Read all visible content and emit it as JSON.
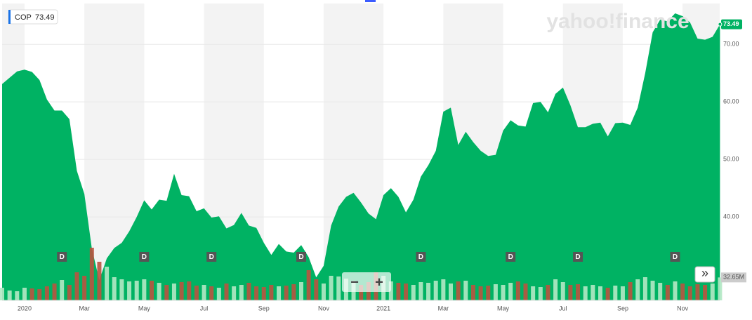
{
  "chart_data": {
    "type": "area",
    "ticker": "COP",
    "last_price": {
      "value": 73.49,
      "label": "73.49"
    },
    "watermark": "yahoo!finance",
    "color": "#00b263",
    "grid": true,
    "ylim": [
      25.5,
      77.1
    ],
    "yticks": [
      {
        "value": 40,
        "label": "40.00"
      },
      {
        "value": 50,
        "label": "50.00"
      },
      {
        "value": 60,
        "label": "60.00"
      },
      {
        "value": 70,
        "label": "70.00"
      }
    ],
    "categories": [
      null,
      null,
      null,
      "2020",
      null,
      null,
      null,
      null,
      null,
      null,
      null,
      "Mar",
      null,
      null,
      null,
      null,
      null,
      null,
      null,
      "May",
      null,
      null,
      null,
      null,
      null,
      null,
      null,
      "Jul",
      null,
      null,
      null,
      null,
      null,
      null,
      null,
      "Sep",
      null,
      null,
      null,
      null,
      null,
      null,
      null,
      "Nov",
      null,
      null,
      null,
      null,
      null,
      null,
      null,
      "2021",
      null,
      null,
      null,
      null,
      null,
      null,
      null,
      "Mar",
      null,
      null,
      null,
      null,
      null,
      null,
      null,
      "May",
      null,
      null,
      null,
      null,
      null,
      null,
      null,
      "Jul",
      null,
      null,
      null,
      null,
      null,
      null,
      null,
      "Sep",
      null,
      null,
      null,
      null,
      null,
      null,
      null,
      "Nov",
      null,
      null,
      null,
      null,
      null
    ],
    "values": [
      63.1,
      64.2,
      65.3,
      65.6,
      65.2,
      63.8,
      60.4,
      58.5,
      58.5,
      57,
      48,
      44,
      34.5,
      29,
      32.8,
      34.6,
      35.5,
      37.5,
      40,
      42.9,
      41.3,
      43,
      42.8,
      47.5,
      43.8,
      43.6,
      41,
      41.5,
      39.9,
      40.1,
      38,
      38.6,
      40.7,
      38.5,
      38.1,
      35.5,
      33.4,
      35.3,
      34,
      33.8,
      35.1,
      33,
      29.5,
      31.5,
      38.5,
      41.8,
      43.5,
      44.2,
      42.5,
      40.6,
      39.6,
      43.8,
      45,
      43.5,
      40.8,
      43,
      47,
      49,
      51.5,
      58.3,
      59,
      52.5,
      54.8,
      53,
      51.5,
      50.6,
      50.8,
      55,
      56.8,
      55.9,
      55.7,
      59.8,
      60,
      58.2,
      61.4,
      62.5,
      59.4,
      55.6,
      55.6,
      56.2,
      56.4,
      54,
      56.3,
      56.4,
      56,
      59,
      65,
      72.1,
      74.3,
      74,
      75.4,
      74.9,
      73.8,
      71,
      70.8,
      71.3,
      73.49
    ],
    "volume": {
      "vlim": [
        0,
        80
      ],
      "up_color": "#b3e8c4",
      "down_color": "#b9533f",
      "last_label": "32.65M",
      "values": [
        18,
        14,
        13,
        18,
        17,
        16,
        20,
        24,
        29,
        22,
        40,
        35,
        75,
        55,
        48,
        33,
        30,
        27,
        28,
        30,
        28,
        25,
        22,
        24,
        26,
        27,
        21,
        22,
        20,
        18,
        24,
        20,
        22,
        25,
        20,
        19,
        22,
        20,
        21,
        23,
        26,
        43,
        30,
        24,
        35,
        34,
        31,
        28,
        22,
        26,
        40,
        35,
        27,
        25,
        24,
        22,
        26,
        25,
        28,
        30,
        24,
        27,
        28,
        22,
        20,
        21,
        23,
        22,
        25,
        27,
        24,
        20,
        19,
        22,
        30,
        26,
        22,
        23,
        20,
        22,
        20,
        18,
        21,
        20,
        26,
        30,
        33,
        28,
        25,
        22,
        27,
        24,
        20,
        23,
        22,
        24,
        32.65
      ]
    },
    "dividends": [
      {
        "label": "D",
        "at": 8
      },
      {
        "label": "D",
        "at": 19
      },
      {
        "label": "D",
        "at": 28
      },
      {
        "label": "D",
        "at": 40
      },
      {
        "label": "D",
        "at": 56
      },
      {
        "label": "D",
        "at": 68
      },
      {
        "label": "D",
        "at": 77
      },
      {
        "label": "D",
        "at": 90
      }
    ],
    "zoom_out": "−",
    "zoom_in": "+",
    "scroll_button": "»"
  }
}
